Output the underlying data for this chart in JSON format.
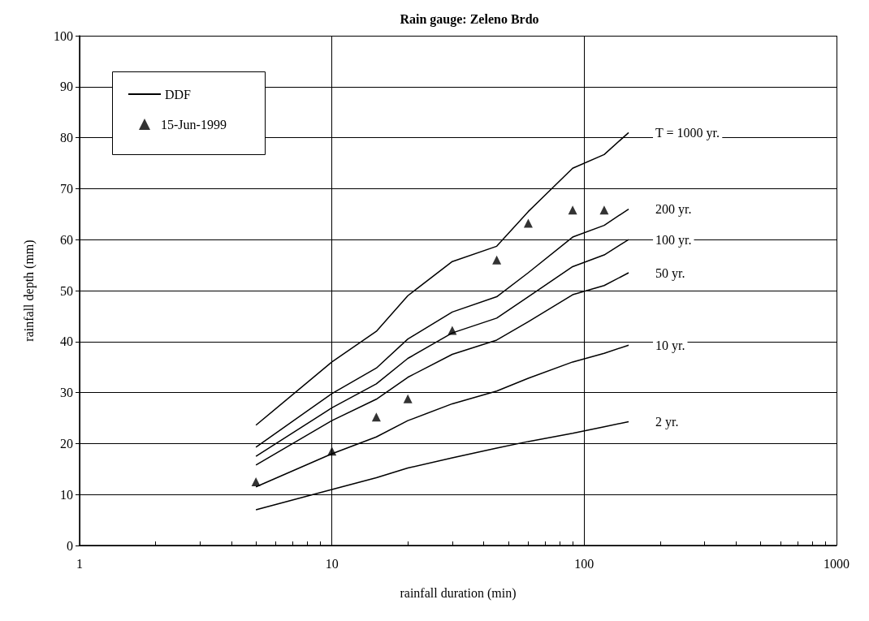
{
  "chart_data": {
    "type": "line",
    "title": "Rain gauge: Zeleno Brdo",
    "xlabel": "rainfall duration (min)",
    "ylabel": "rainfall depth (mm)",
    "log": "x",
    "xlim": [
      1,
      1000
    ],
    "ylim": [
      0,
      100
    ],
    "xticks": [
      1,
      {
        "value": 2,
        "label": null
      },
      {
        "value": 3,
        "label": null
      },
      {
        "value": 4,
        "label": null
      },
      {
        "value": 5,
        "label": null
      },
      {
        "value": 6,
        "label": null
      },
      {
        "value": 7,
        "label": null
      },
      {
        "value": 8,
        "label": null
      },
      {
        "value": 9,
        "label": null
      },
      10,
      {
        "value": 20,
        "label": null
      },
      {
        "value": 30,
        "label": null
      },
      {
        "value": 40,
        "label": null
      },
      {
        "value": 50,
        "label": null
      },
      {
        "value": 60,
        "label": null
      },
      {
        "value": 70,
        "label": null
      },
      {
        "value": 80,
        "label": null
      },
      {
        "value": 90,
        "label": null
      },
      100,
      {
        "value": 200,
        "label": null
      },
      {
        "value": 300,
        "label": null
      },
      {
        "value": 400,
        "label": null
      },
      {
        "value": 500,
        "label": null
      },
      {
        "value": 600,
        "label": null
      },
      {
        "value": 700,
        "label": null
      },
      {
        "value": 800,
        "label": null
      },
      {
        "value": 900,
        "label": null
      },
      1000
    ],
    "yticks": [
      0,
      10,
      20,
      30,
      40,
      50,
      60,
      70,
      80,
      90,
      100
    ],
    "grid": true,
    "legend": "top left",
    "marker": "none",
    "line_style": "solid",
    "x": [
      5,
      10,
      15,
      20,
      30,
      45,
      60,
      90,
      120,
      150
    ],
    "series": [
      {
        "name": "DDF",
        "color": "#000000",
        "values": [
          23.6,
          36,
          42,
          49,
          55.7,
          58.7,
          65.5,
          74,
          76.7,
          81
        ]
      },
      {
        "color": "#000000",
        "values": [
          19.3,
          29.8,
          34.8,
          40.5,
          45.8,
          48.8,
          53.5,
          60.5,
          62.8,
          66
        ]
      },
      {
        "color": "#000000",
        "values": [
          17.5,
          27,
          31.7,
          36.7,
          41.7,
          44.6,
          48.8,
          54.7,
          57,
          60
        ]
      },
      {
        "color": "#000000",
        "values": [
          15.8,
          24.5,
          28.7,
          33,
          37.5,
          40.3,
          43.9,
          49.2,
          51,
          53.5
        ]
      },
      {
        "color": "#000000",
        "values": [
          11.5,
          18,
          21.3,
          24.5,
          27.8,
          30.3,
          32.8,
          36,
          37.7,
          39.3
        ]
      },
      {
        "color": "#000000",
        "values": [
          7,
          11,
          13.3,
          15.2,
          17.2,
          19.1,
          20.4,
          22,
          23.3,
          24.3
        ]
      },
      {
        "name": "15-Jun-1999",
        "type": "scatter",
        "marker": "triangle",
        "color": "#000000",
        "x": [
          5,
          10,
          15,
          20,
          30,
          45,
          60,
          90,
          120
        ],
        "values": [
          12.5,
          18.5,
          25.2,
          28.8,
          42.2,
          56,
          63.2,
          65.8,
          65.8
        ]
      }
    ],
    "annotations": [
      "T = 1000 yr.",
      "200 yr.",
      "100 yr.",
      "50 yr.",
      "10 yr.",
      "2 yr."
    ]
  }
}
